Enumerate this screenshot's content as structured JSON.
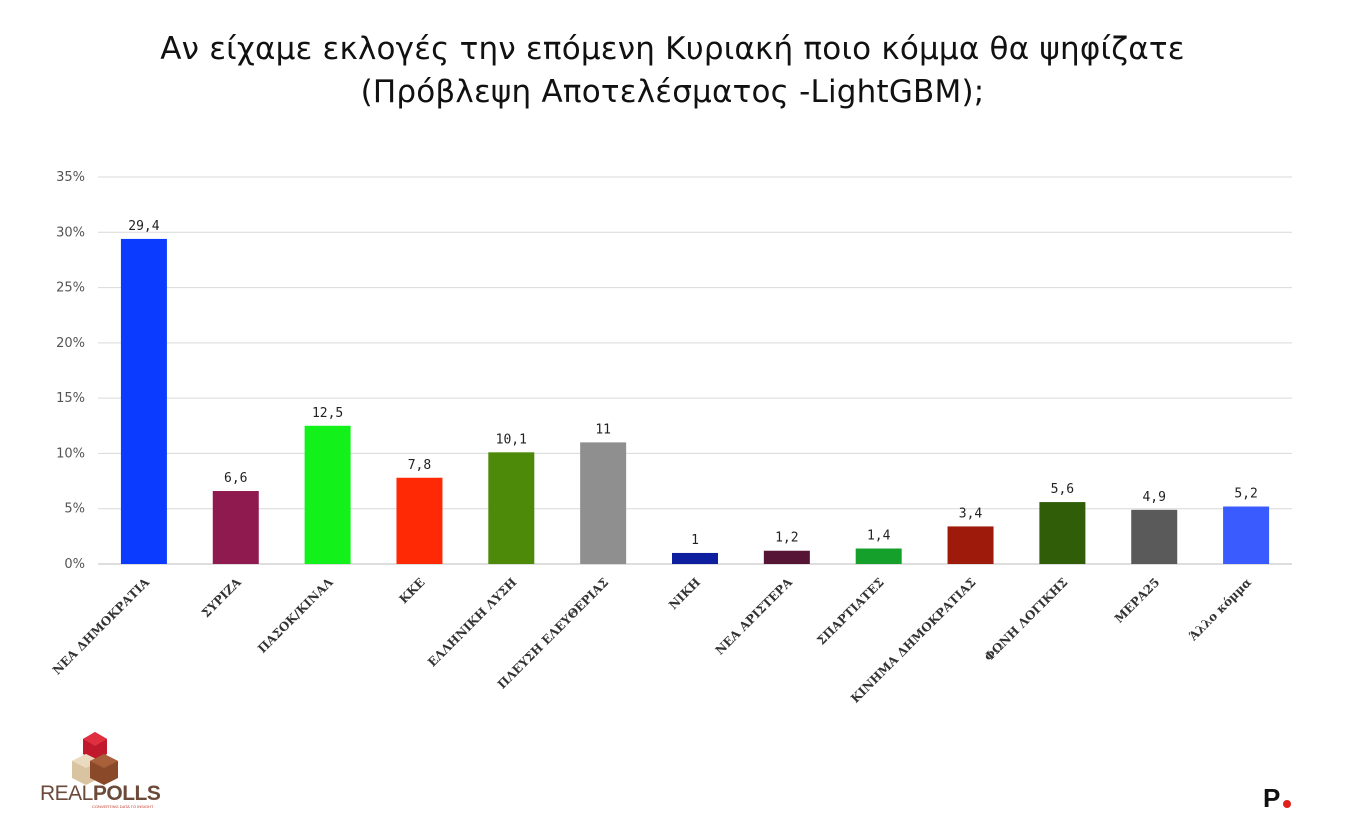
{
  "title": {
    "line1": "Αν είχαμε εκλογές την επόμενη Κυριακή ποιο κόμμα θα ψηφίζατε",
    "line2": "(Πρόβλεψη Αποτελέσματος -LightGBM);"
  },
  "chart_data": {
    "type": "bar",
    "title": "Αν είχαμε εκλογές την επόμενη Κυριακή ποιο κόμμα θα ψηφίζατε (Πρόβλεψη Αποτελέσματος -LightGBM);",
    "xlabel": "",
    "ylabel": "",
    "ylim": [
      0,
      35
    ],
    "y_ticks": [
      "0%",
      "5%",
      "10%",
      "15%",
      "20%",
      "25%",
      "30%",
      "35%"
    ],
    "grid": true,
    "categories": [
      "ΝΕΑ ΔΗΜΟΚΡΑΤΙΑ",
      "ΣΥΡΙΖΑ",
      "ΠΑΣΟΚ/ΚΙΝΑΛ",
      "ΚΚΕ",
      "ΕΛΛΗΝΙΚΗ ΛΥΣΗ",
      "ΠΛΕΥΣΗ ΕΛΕΥΘΕΡΙΑΣ",
      "ΝΙΚΗ",
      "ΝΕΑ ΑΡΙΣΤΕΡΑ",
      "ΣΠΑΡΤΙΑΤΕΣ",
      "ΚΙΝΗΜΑ ΔΗΜΟΚΡΑΤΙΑΣ",
      "ΦΩΝΗ ΛΟΓΙΚΗΣ",
      "ΜΕΡΑ25",
      "Άλλο κόμμα"
    ],
    "values": [
      29.4,
      6.6,
      12.5,
      7.8,
      10.1,
      11,
      1,
      1.2,
      1.4,
      3.4,
      5.6,
      4.9,
      5.2
    ],
    "value_labels": [
      "29,4",
      "6,6",
      "12,5",
      "7,8",
      "10,1",
      "11",
      "1",
      "1,2",
      "1,4",
      "3,4",
      "5,6",
      "4,9",
      "5,2"
    ],
    "colors": [
      "#0b3bff",
      "#8e1a4f",
      "#12f21a",
      "#ff2a05",
      "#4d8a0a",
      "#8f8f8f",
      "#0d1f9e",
      "#571535",
      "#14a02a",
      "#9e1b0c",
      "#2f5d08",
      "#5a5a5a",
      "#3a5cff"
    ]
  },
  "logos": {
    "left_wordmark_1": "REAL",
    "left_wordmark_2": "POLLS",
    "left_tagline": "CONVERTING DATA TO INSIGHT",
    "right_mark": "P."
  }
}
